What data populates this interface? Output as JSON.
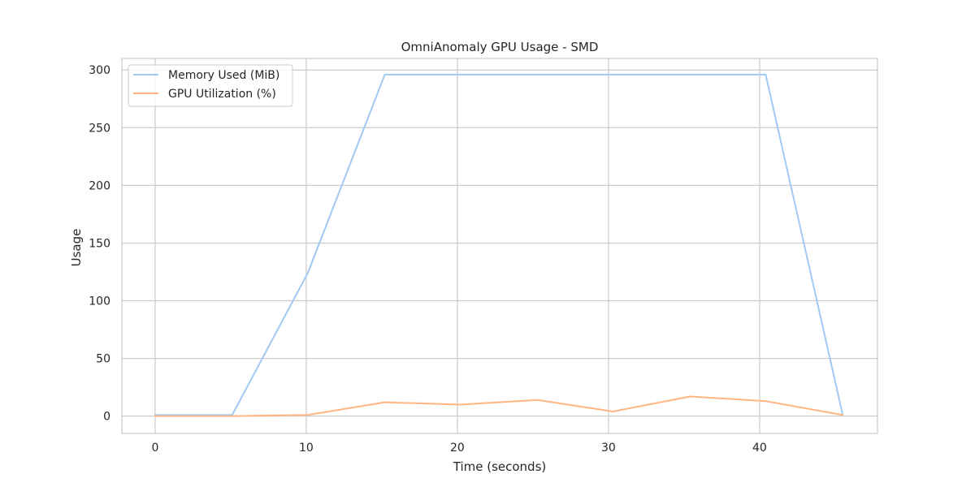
{
  "chart_data": {
    "type": "line",
    "title": "OmniAnomaly GPU Usage - SMD",
    "xlabel": "Time (seconds)",
    "ylabel": "Usage",
    "xlim": [
      -2.2,
      47.8
    ],
    "ylim": [
      -15,
      310
    ],
    "xticks": [
      0,
      10,
      20,
      30,
      40
    ],
    "yticks": [
      0,
      50,
      100,
      150,
      200,
      250,
      300
    ],
    "grid": true,
    "legend_position": "top-left",
    "series": [
      {
        "name": "Memory Used (MiB)",
        "color": "#a1c9f4",
        "x": [
          0,
          5.1,
          10.1,
          15.2,
          20.2,
          25.3,
          30.3,
          35.4,
          40.4,
          45.5
        ],
        "y": [
          1,
          1,
          124,
          296,
          296,
          296,
          296,
          296,
          296,
          1
        ]
      },
      {
        "name": "GPU Utilization (%)",
        "color": "#ffb482",
        "x": [
          0,
          5.1,
          10.1,
          15.2,
          20.2,
          25.3,
          30.3,
          35.4,
          40.4,
          45.5
        ],
        "y": [
          0,
          0,
          1,
          12,
          10,
          14,
          4,
          17,
          13,
          1
        ]
      }
    ]
  }
}
